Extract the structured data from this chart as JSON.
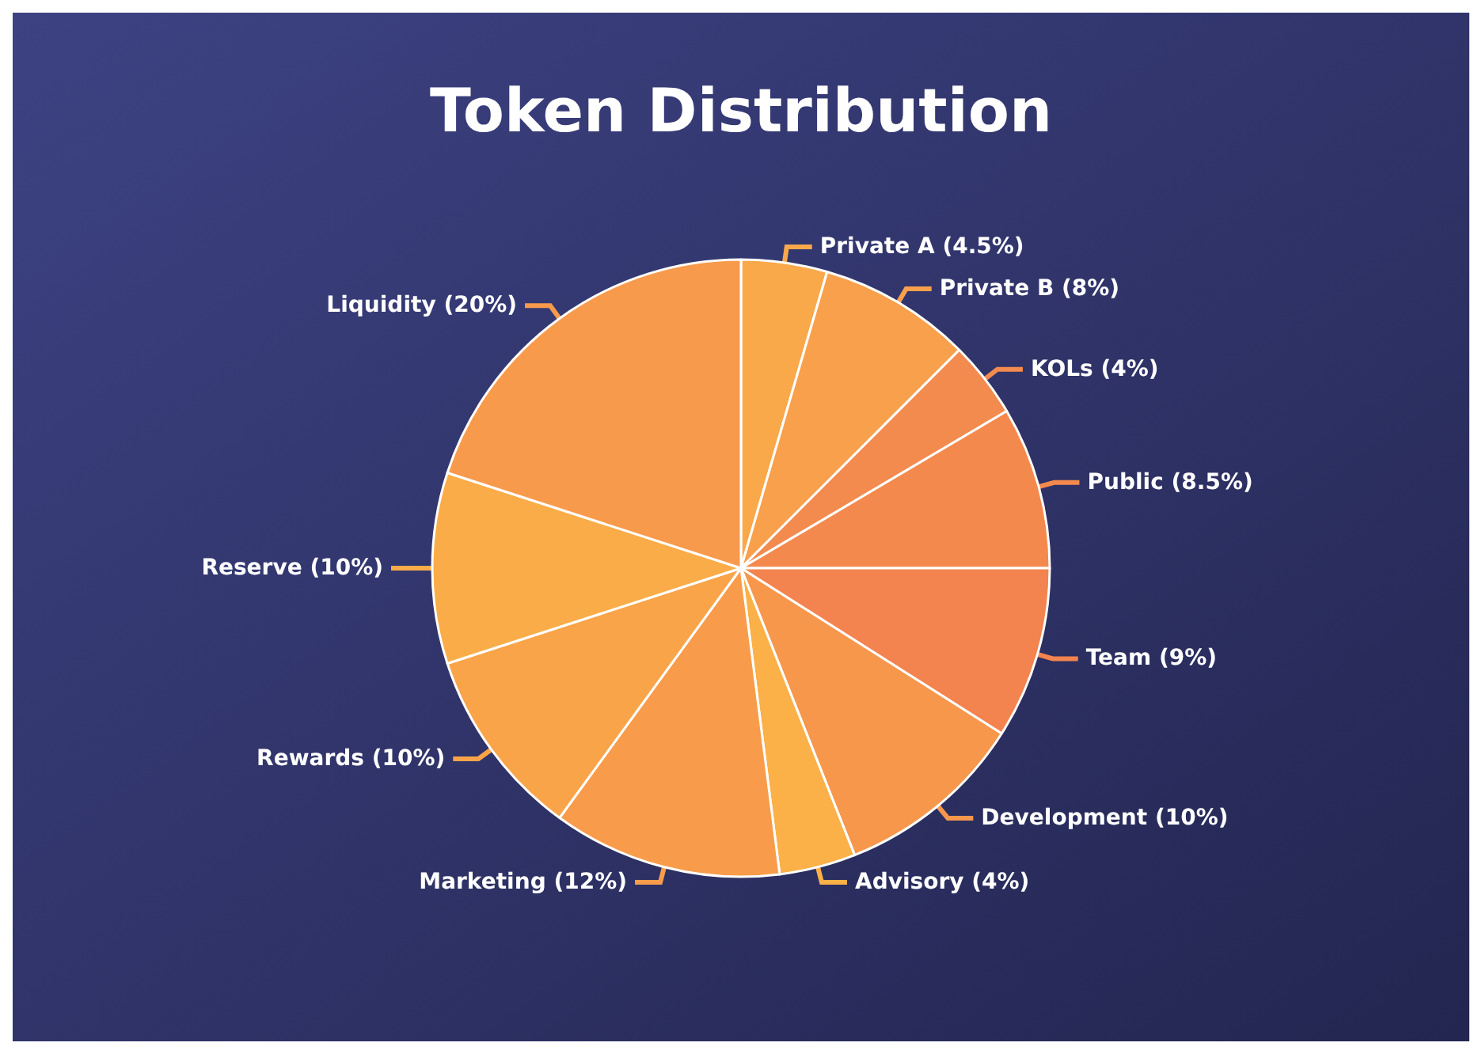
{
  "chart_data": {
    "type": "pie",
    "title": "Token Distribution",
    "categories": [
      "Private A (4.5%)",
      "Private B (8%)",
      "KOLs (4%)",
      "Public (8.5%)",
      "Team (9%)",
      "Development (10%)",
      "Advisory (4%)",
      "Marketing (12%)",
      "Rewards (10%)",
      "Reserve (10%)",
      "Liquidity (20%)"
    ],
    "values": [
      4.5,
      8,
      4,
      8.5,
      9,
      10,
      4,
      12,
      10,
      10,
      20
    ],
    "colors": [
      "#f9a84a",
      "#f8a04b",
      "#f38a4e",
      "#f4894e",
      "#f3834f",
      "#f6974c",
      "#fbb048",
      "#f89c4b",
      "#f9a449",
      "#faac48",
      "#f79a4b"
    ],
    "legend": false
  }
}
